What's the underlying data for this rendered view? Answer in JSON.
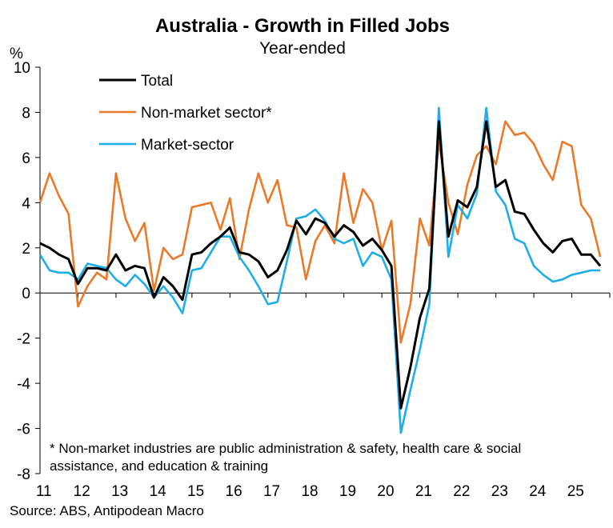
{
  "chart_data": {
    "type": "line",
    "title": "Australia - Growth in Filled Jobs",
    "subtitle": "Year-ended",
    "ylabel": "%",
    "xlabel": "",
    "ylim": [
      -8,
      10
    ],
    "yticks": [
      -8,
      -6,
      -4,
      -2,
      0,
      2,
      4,
      6,
      8,
      10
    ],
    "xlim": [
      11.0,
      26.0
    ],
    "xticks": [
      "11",
      "12",
      "13",
      "14",
      "15",
      "16",
      "17",
      "18",
      "19",
      "20",
      "21",
      "22",
      "23",
      "24",
      "25"
    ],
    "grid": false,
    "legend_position": "top-left",
    "note": "* Non-market industries are public administration & safety, health care & social assistance, and education & training",
    "source": "Source: ABS, Antipodean Macro",
    "series": [
      {
        "name": "Total",
        "color": "#000000",
        "x": [
          11.0,
          11.25,
          11.5,
          11.75,
          12.0,
          12.25,
          12.5,
          12.75,
          13.0,
          13.25,
          13.5,
          13.75,
          14.0,
          14.25,
          14.5,
          14.75,
          15.0,
          15.25,
          15.5,
          15.75,
          16.0,
          16.25,
          16.5,
          16.75,
          17.0,
          17.25,
          17.5,
          17.75,
          18.0,
          18.25,
          18.5,
          18.75,
          19.0,
          19.25,
          19.5,
          19.75,
          20.0,
          20.25,
          20.5,
          20.75,
          21.0,
          21.25,
          21.5,
          21.75,
          22.0,
          22.25,
          22.5,
          22.75,
          23.0,
          23.25,
          23.5,
          23.75,
          24.0,
          24.25,
          24.5,
          24.75,
          25.0,
          25.25,
          25.5,
          25.75
        ],
        "values": [
          2.2,
          2.0,
          1.7,
          1.5,
          0.4,
          1.1,
          1.1,
          1.0,
          1.7,
          1.0,
          1.2,
          1.1,
          -0.2,
          0.7,
          0.3,
          -0.3,
          1.7,
          1.8,
          2.2,
          2.5,
          2.9,
          1.8,
          1.7,
          1.4,
          0.7,
          1.0,
          1.9,
          3.2,
          2.6,
          3.3,
          3.1,
          2.5,
          3.0,
          2.7,
          2.1,
          2.4,
          1.9,
          1.2,
          -5.1,
          -3.3,
          -1.1,
          0.2,
          7.6,
          2.5,
          4.1,
          3.8,
          4.7,
          7.6,
          4.7,
          5.0,
          3.6,
          3.5,
          2.8,
          2.2,
          1.8,
          2.3,
          2.4,
          1.7,
          1.7,
          1.2
        ]
      },
      {
        "name": "Non-market sector*",
        "color": "#E97A29",
        "x": [
          11.0,
          11.25,
          11.5,
          11.75,
          12.0,
          12.25,
          12.5,
          12.75,
          13.0,
          13.25,
          13.5,
          13.75,
          14.0,
          14.25,
          14.5,
          14.75,
          15.0,
          15.25,
          15.5,
          15.75,
          16.0,
          16.25,
          16.5,
          16.75,
          17.0,
          17.25,
          17.5,
          17.75,
          18.0,
          18.25,
          18.5,
          18.75,
          19.0,
          19.25,
          19.5,
          19.75,
          20.0,
          20.25,
          20.5,
          20.75,
          21.0,
          21.25,
          21.5,
          21.75,
          22.0,
          22.25,
          22.5,
          22.75,
          23.0,
          23.25,
          23.5,
          23.75,
          24.0,
          24.25,
          24.5,
          24.75,
          25.0,
          25.25,
          25.5,
          25.75
        ],
        "values": [
          4.0,
          5.3,
          4.3,
          3.5,
          -0.6,
          0.3,
          0.9,
          0.6,
          5.3,
          3.3,
          2.3,
          3.1,
          0.1,
          2.0,
          1.5,
          1.7,
          3.8,
          3.9,
          4.0,
          2.8,
          4.2,
          1.5,
          3.7,
          5.3,
          4.0,
          5.0,
          3.0,
          2.9,
          0.6,
          2.3,
          3.0,
          2.2,
          5.3,
          3.1,
          4.6,
          4.0,
          1.9,
          3.2,
          -2.2,
          -0.5,
          3.3,
          2.1,
          6.7,
          4.0,
          2.6,
          4.8,
          6.1,
          6.5,
          5.7,
          7.6,
          7.0,
          7.1,
          6.6,
          5.7,
          5.0,
          6.7,
          6.5,
          3.9,
          3.3,
          1.6
        ]
      },
      {
        "name": "Market-sector",
        "color": "#1EAEE8",
        "x": [
          11.0,
          11.25,
          11.5,
          11.75,
          12.0,
          12.25,
          12.5,
          12.75,
          13.0,
          13.25,
          13.5,
          13.75,
          14.0,
          14.25,
          14.5,
          14.75,
          15.0,
          15.25,
          15.5,
          15.75,
          16.0,
          16.25,
          16.5,
          16.75,
          17.0,
          17.25,
          17.5,
          17.75,
          18.0,
          18.25,
          18.5,
          18.75,
          19.0,
          19.25,
          19.5,
          19.75,
          20.0,
          20.25,
          20.5,
          20.75,
          21.0,
          21.25,
          21.5,
          21.75,
          22.0,
          22.25,
          22.5,
          22.75,
          23.0,
          23.25,
          23.5,
          23.75,
          24.0,
          24.25,
          24.5,
          24.75,
          25.0,
          25.25,
          25.5,
          25.75
        ],
        "values": [
          1.7,
          1.0,
          0.9,
          0.9,
          0.6,
          1.3,
          1.2,
          1.1,
          0.6,
          0.3,
          0.8,
          0.4,
          -0.2,
          0.3,
          -0.2,
          -0.9,
          1.0,
          1.1,
          1.8,
          2.5,
          2.5,
          1.6,
          1.0,
          0.3,
          -0.5,
          -0.4,
          1.4,
          3.3,
          3.4,
          3.7,
          3.2,
          2.4,
          2.2,
          2.4,
          1.2,
          1.8,
          1.6,
          0.6,
          -6.2,
          -4.3,
          -2.5,
          -0.5,
          8.2,
          1.6,
          3.9,
          3.3,
          4.4,
          8.2,
          4.5,
          3.9,
          2.4,
          2.2,
          1.2,
          0.8,
          0.5,
          0.6,
          0.8,
          0.9,
          1.0,
          1.0
        ]
      }
    ]
  }
}
